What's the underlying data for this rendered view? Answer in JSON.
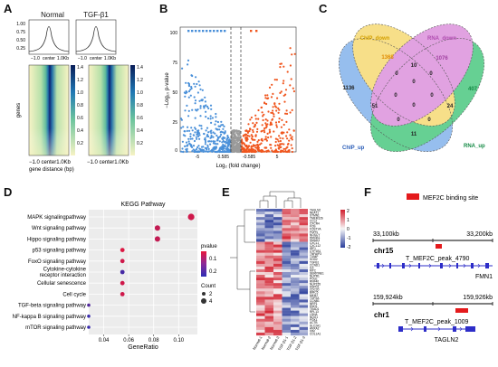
{
  "panels": {
    "A": {
      "letter": "A",
      "groups": [
        "Normal",
        "TGF-β1"
      ],
      "profile_yticks": [
        "1.00",
        "0.75",
        "0.50",
        "0.25"
      ],
      "profile_xticks": [
        "−1.0",
        "center",
        "1.0Kb"
      ],
      "heatmap_ylabel": "genes",
      "heatmap_xticks": [
        "−1.0 center1.0Kb",
        "−1.0 center1.0Kb"
      ],
      "heatmap_xlabel": "gene distance (bp)",
      "colorbar_ticks": [
        "1.4",
        "1.2",
        "1.0",
        "0.8",
        "0.6",
        "0.4",
        "0.2"
      ],
      "colors": {
        "low": "#f7f3c4",
        "mid": "#5dbb9a",
        "high": "#0a1f6e"
      }
    },
    "B": {
      "letter": "B",
      "ylabel": "−Log₁₀ p-value",
      "xlabel": "Log₂ (fold change)",
      "yticks": [
        "100",
        "75",
        "50",
        "25",
        "0"
      ],
      "xticks": [
        "-5",
        "0.585",
        "-0.585",
        "5"
      ],
      "colors": {
        "down": "#4a90d9",
        "up": "#f0561e",
        "ns": "#9a9a9a"
      }
    },
    "C": {
      "letter": "C",
      "sets": [
        {
          "label": "ChIP_down",
          "color": "#f4d45c"
        },
        {
          "label": "RNA_down",
          "color": "#d67fd6"
        },
        {
          "label": "ChIP_up",
          "color": "#6ea6e8"
        },
        {
          "label": "RNA_up",
          "color": "#2cbf6a"
        }
      ],
      "numbers": [
        "1136",
        "1368",
        "1076",
        "407",
        "10",
        "0",
        "0",
        "0",
        "51",
        "0",
        "0",
        "24",
        "11",
        "0",
        "0",
        "0"
      ]
    },
    "D": {
      "letter": "D",
      "chart_data": {
        "type": "scatter",
        "title": "KEGG Pathway",
        "xlabel": "GeneRatio",
        "xticks": [
          0.04,
          0.06,
          0.08,
          0.1
        ],
        "xlim": [
          0.028,
          0.115
        ],
        "categories": [
          "MAPK signalingpathway",
          "Wnt signaling pathway",
          "Hippo signaling pathway",
          "p53 signaling pathway",
          "FoxO signaling pathway",
          "Cytokine-cytokine receptor interaction",
          "Cellular senescence",
          "Cell cycle",
          "TGF-beta signaling pathway",
          "NF-kappa B signaling pathway",
          "mTOR signaling pathway"
        ],
        "x": [
          0.11,
          0.083,
          0.083,
          0.055,
          0.055,
          0.055,
          0.055,
          0.055,
          0.028,
          0.028,
          0.028
        ],
        "count": [
          4,
          3,
          3,
          2,
          2,
          2,
          2,
          2,
          1,
          1,
          1
        ],
        "pvalue": [
          0.02,
          0.03,
          0.03,
          0.01,
          0.02,
          0.13,
          0.02,
          0.02,
          0.12,
          0.14,
          0.14
        ],
        "legend": {
          "color_title": "pvalue",
          "color_ticks": [
            "0.1",
            "0.2"
          ],
          "size_title": "Count",
          "size_ticks": [
            "2",
            "4"
          ]
        },
        "colors": {
          "low_p": "#e8163b",
          "high_p": "#2d2db5"
        }
      }
    },
    "E": {
      "letter": "E",
      "genes": [
        "TAGLN2",
        "NEAT1",
        "STMN1",
        "TMEM126",
        "CCL2",
        "CXCR4",
        "FOS",
        "FOSTYA",
        "PDPN",
        "NOSCY",
        "HMGB1",
        "SMAD3",
        "CXCL1",
        "CXCL12",
        "IRF1",
        "CYP1B1",
        "TNFAIP3",
        "TXNIP",
        "SOD2",
        "TGFB1",
        "CCND1",
        "IL6",
        "MYC",
        "SERPINE1",
        "NUPR1",
        "POLE",
        "RNF40",
        "NUP155",
        "HSPD1",
        "CDC20",
        "BIRC5",
        "MKI67",
        "TOP2A",
        "CCNB1",
        "NRP1",
        "ENO1",
        "TEAD1",
        "RPL13",
        "LDHA",
        "NQO1",
        "PGK1",
        "ACTB",
        "SLC2A1",
        "ANXA2",
        "VIM",
        "COL1A1"
      ],
      "samples": [
        "Normal-1",
        "Normal-2",
        "Normal-3",
        "TGF-β1-1",
        "TGF-β1-2",
        "TGF-β1-3"
      ],
      "colorbar_ticks": [
        "2",
        "1",
        "0",
        "-1",
        "-2"
      ],
      "colors": {
        "high": "#d21f2e",
        "zero": "#f7f7f7",
        "low": "#2b3f9c"
      }
    },
    "F": {
      "letter": "F",
      "legend_label": "MEF2C binding site",
      "legend_color": "#e41a1c",
      "tracks": [
        {
          "coord_left": "33,100kb",
          "coord_right": "33,200kb",
          "chrom": "chr15",
          "peak": "T_MEF2C_peak_4790",
          "gene": "FMN1"
        },
        {
          "coord_left": "159,924kb",
          "coord_right": "159,926kb",
          "chrom": "chr1",
          "peak": "T_MEF2C_peak_1009",
          "gene": "TAGLN2"
        }
      ]
    }
  }
}
